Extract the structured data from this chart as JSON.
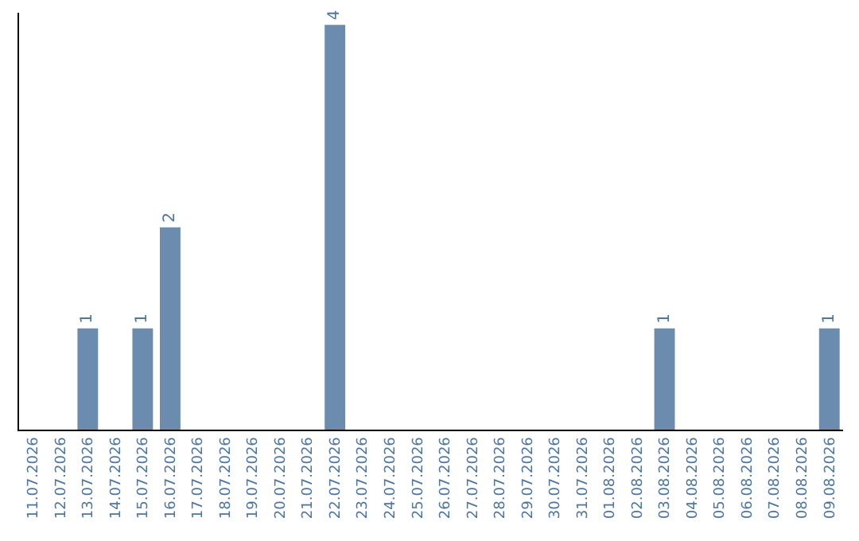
{
  "chart_data": {
    "type": "bar",
    "categories": [
      "11.07.2026",
      "12.07.2026",
      "13.07.2026",
      "14.07.2026",
      "15.07.2026",
      "16.07.2026",
      "17.07.2026",
      "18.07.2026",
      "19.07.2026",
      "20.07.2026",
      "21.07.2026",
      "22.07.2026",
      "23.07.2026",
      "24.07.2026",
      "25.07.2026",
      "26.07.2026",
      "27.07.2026",
      "28.07.2026",
      "29.07.2026",
      "30.07.2026",
      "31.07.2026",
      "01.08.2026",
      "02.08.2026",
      "03.08.2026",
      "04.08.2026",
      "05.08.2026",
      "06.08.2026",
      "07.08.2026",
      "08.08.2026",
      "09.08.2026"
    ],
    "values": [
      0,
      0,
      1,
      0,
      1,
      2,
      0,
      0,
      0,
      0,
      0,
      4,
      0,
      0,
      0,
      0,
      0,
      0,
      0,
      0,
      0,
      0,
      0,
      1,
      0,
      0,
      0,
      0,
      0,
      1
    ],
    "value_labels": [
      null,
      null,
      "1",
      null,
      "1",
      "2",
      null,
      null,
      null,
      null,
      null,
      "4",
      null,
      null,
      null,
      null,
      null,
      null,
      null,
      null,
      null,
      null,
      null,
      "1",
      null,
      null,
      null,
      null,
      null,
      "1"
    ],
    "color": "#6b8cae",
    "tick_labels": "x"
  }
}
